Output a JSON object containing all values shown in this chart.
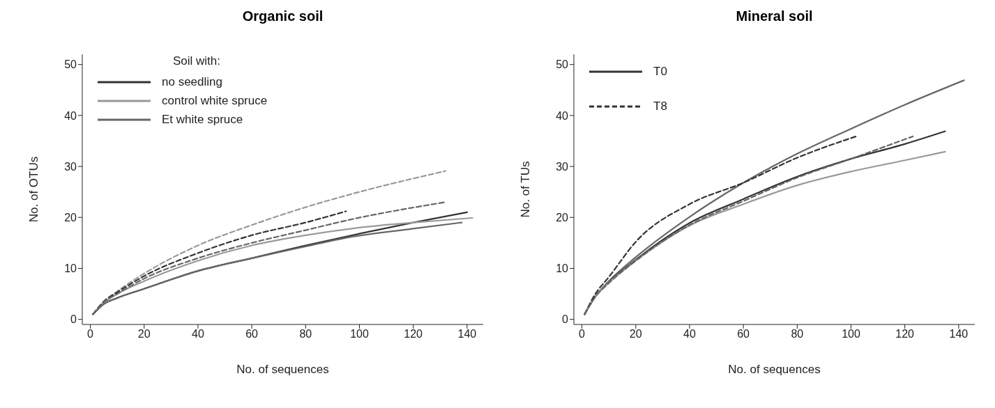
{
  "chart_data": [
    {
      "type": "line",
      "title": "Organic soil",
      "xlabel": "No. of sequences",
      "ylabel": "No. of OTUs",
      "legend_title": "Soil with:",
      "legend": "top left",
      "xlim": [
        -3,
        146
      ],
      "xticks": [
        0,
        20,
        40,
        60,
        80,
        100,
        120,
        140
      ],
      "ylim": [
        -1,
        52
      ],
      "yticks": [
        0,
        10,
        20,
        30,
        40,
        50
      ],
      "grid": false,
      "marker": "none",
      "line_style": "solid",
      "series": [
        {
          "name": "no seedling",
          "color": "#333333",
          "x": [
            1,
            5,
            10,
            20,
            40,
            60,
            80,
            100,
            120,
            140
          ],
          "values": [
            1,
            3,
            4.2,
            6,
            9.5,
            12,
            14.5,
            16.8,
            19,
            21
          ]
        },
        {
          "name": "control white spruce",
          "color": "#999999",
          "x": [
            1,
            5,
            10,
            20,
            40,
            60,
            80,
            100,
            120,
            142
          ],
          "values": [
            1,
            3.2,
            5,
            7.5,
            11.5,
            14.5,
            16.5,
            18,
            19,
            19.9
          ]
        },
        {
          "name": "Et white spruce",
          "color": "#666666",
          "x": [
            1,
            5,
            10,
            20,
            40,
            60,
            80,
            95,
            120,
            138
          ],
          "values": [
            1,
            3,
            4.2,
            6,
            9.5,
            12,
            14.3,
            16,
            17.8,
            19
          ]
        },
        {
          "color": "#999999",
          "line_style": "dashed",
          "x": [
            1,
            5,
            10,
            20,
            40,
            60,
            80,
            100,
            132
          ],
          "values": [
            1,
            3.5,
            5.5,
            9,
            14.5,
            18.5,
            22,
            25,
            29.1
          ]
        },
        {
          "color": "#333333",
          "line_style": "dashed",
          "x": [
            1,
            5,
            10,
            20,
            40,
            60,
            80,
            95
          ],
          "values": [
            1,
            3.5,
            5.3,
            8.5,
            13,
            16.5,
            19,
            21.2
          ]
        },
        {
          "color": "#666666",
          "line_style": "dashed",
          "x": [
            1,
            5,
            10,
            20,
            40,
            60,
            80,
            96,
            132
          ],
          "values": [
            1,
            3.4,
            5,
            8,
            12,
            15,
            17.5,
            19.5,
            23
          ]
        }
      ]
    },
    {
      "type": "line",
      "title": "Mineral soil",
      "xlabel": "No. of sequences",
      "ylabel": "No. of TUs",
      "legend": "top left",
      "xlim": [
        -3,
        146
      ],
      "xticks": [
        0,
        20,
        40,
        60,
        80,
        100,
        120,
        140
      ],
      "ylim": [
        -1,
        52
      ],
      "yticks": [
        0,
        10,
        20,
        30,
        40,
        50
      ],
      "grid": false,
      "marker": "none",
      "line_style": "solid",
      "series": [
        {
          "color": "#666666",
          "x": [
            1,
            5,
            10,
            20,
            40,
            60,
            80,
            100,
            120,
            142
          ],
          "values": [
            1,
            4.5,
            7.5,
            12.2,
            20.1,
            26.8,
            32.5,
            37.4,
            42.1,
            46.9
          ]
        },
        {
          "name": "T0",
          "color": "#333333",
          "x": [
            1,
            5,
            10,
            20,
            40,
            60,
            80,
            100,
            120,
            135
          ],
          "values": [
            1,
            4.5,
            7.3,
            11.7,
            18.9,
            23.6,
            28,
            31.5,
            34.4,
            36.9
          ]
        },
        {
          "color": "#999999",
          "x": [
            1,
            5,
            10,
            20,
            40,
            60,
            80,
            100,
            120,
            135
          ],
          "values": [
            1,
            4.5,
            7.2,
            11.5,
            18.4,
            22.6,
            26.3,
            29,
            31.2,
            32.9
          ]
        },
        {
          "name": "T8",
          "color": "#333333",
          "line_style": "dashed",
          "x": [
            1,
            5,
            10,
            20,
            40,
            60,
            80,
            102.5
          ],
          "values": [
            1,
            5,
            8.3,
            15.2,
            22.6,
            26.8,
            31.7,
            36
          ]
        },
        {
          "color": "#666666",
          "line_style": "dashed",
          "x": [
            1,
            5,
            10,
            20,
            40,
            60,
            80,
            100,
            123
          ],
          "values": [
            1,
            4.4,
            7.1,
            11.5,
            18.5,
            23.2,
            27.8,
            31.5,
            35.9
          ]
        }
      ]
    }
  ]
}
